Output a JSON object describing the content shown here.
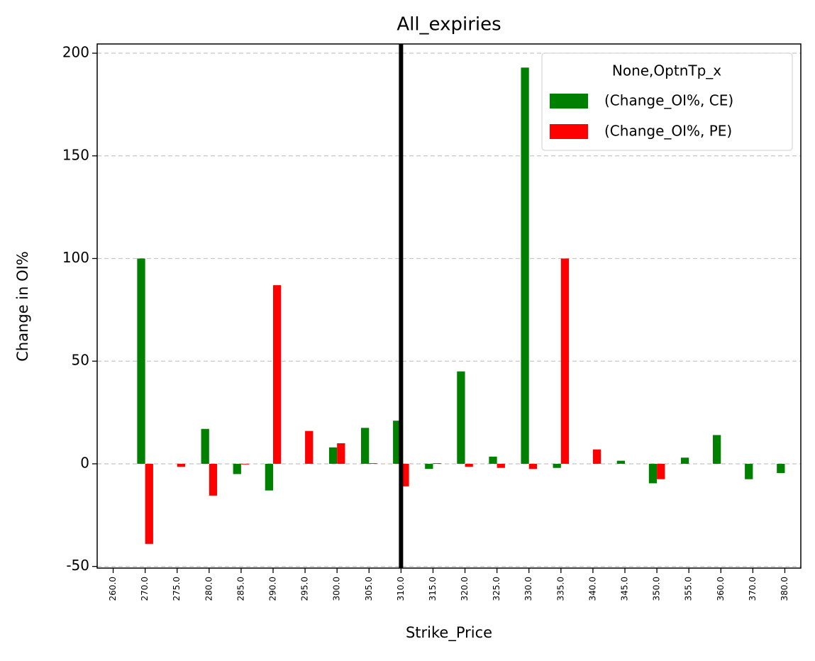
{
  "chart_data": {
    "type": "bar",
    "title": "All_expiries",
    "xlabel": "Strike_Price",
    "ylabel": "Change in OI%",
    "categories": [
      "260.0",
      "270.0",
      "275.0",
      "280.0",
      "285.0",
      "290.0",
      "295.0",
      "300.0",
      "305.0",
      "310.0",
      "315.0",
      "320.0",
      "325.0",
      "330.0",
      "335.0",
      "340.0",
      "345.0",
      "350.0",
      "355.0",
      "360.0",
      "370.0",
      "380.0"
    ],
    "series": [
      {
        "name": "(Change_OI%, CE)",
        "color": "#008000",
        "values": [
          null,
          100,
          null,
          17,
          -5,
          -13,
          null,
          8,
          17.5,
          21,
          -2.5,
          45,
          3.5,
          193,
          -2,
          null,
          1.5,
          -9.5,
          3,
          14,
          -7.5,
          -4.5
        ]
      },
      {
        "name": "(Change_OI%, PE)",
        "color": "#ff0000",
        "values": [
          null,
          -39,
          -1.5,
          -15.5,
          -0.3,
          87,
          16,
          10,
          0.3,
          -11,
          0.3,
          -1.5,
          -2,
          -2.5,
          100,
          7,
          null,
          -7.5,
          null,
          null,
          null,
          null
        ]
      }
    ],
    "legend_title": "None,OptnTp_x",
    "legend": "upper right",
    "vline": "310.0",
    "ylim": [
      -50.8,
      204.5
    ],
    "yticks": [
      -50,
      0,
      50,
      100,
      150,
      200
    ],
    "grid": true
  }
}
